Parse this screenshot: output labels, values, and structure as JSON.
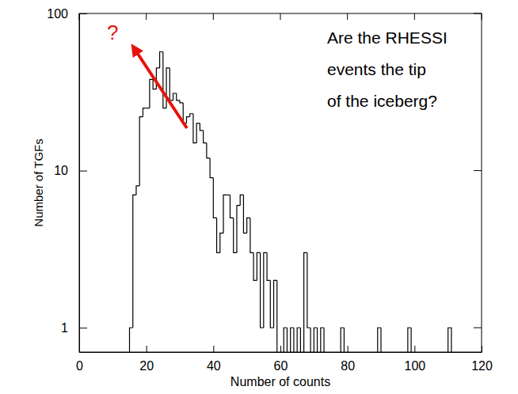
{
  "chart_data": {
    "type": "histogram",
    "x_label": "Number of counts",
    "y_label": "Number of TGFs",
    "annotation": [
      "Are the RHESSI",
      "events the tip",
      "of the iceberg?"
    ],
    "question_mark": "?",
    "color": "#000000",
    "log": "y",
    "grid": false,
    "xlim": [
      0,
      120
    ],
    "xticks": [
      0,
      20,
      40,
      60,
      80,
      100,
      120
    ],
    "ylim": [
      0.7,
      100
    ],
    "yticks": [
      1,
      10,
      100
    ],
    "bins": [
      15,
      16,
      17,
      18,
      19,
      20,
      21,
      22,
      23,
      24,
      25,
      26,
      27,
      28,
      29,
      30,
      31,
      32,
      33,
      34,
      35,
      36,
      37,
      38,
      39,
      40,
      41,
      42,
      43,
      44,
      45,
      46,
      47,
      48,
      49,
      50,
      51,
      52,
      53,
      54,
      55,
      56,
      57,
      58,
      59,
      60,
      61,
      62,
      63,
      64,
      65,
      66,
      67,
      68,
      69,
      70,
      71,
      72,
      73,
      74,
      75,
      76,
      77,
      78,
      79,
      80,
      81,
      82,
      83,
      84,
      85,
      86,
      87,
      88,
      89,
      90,
      91,
      92,
      93,
      94,
      95,
      96,
      97,
      98,
      99,
      100,
      101,
      102,
      103,
      104,
      105,
      106,
      107,
      108,
      109,
      110,
      111
    ],
    "counts": [
      1,
      7,
      8,
      22,
      25,
      25,
      38,
      33,
      45,
      57,
      25,
      45,
      28,
      31,
      28,
      27,
      20,
      22,
      23,
      15,
      20,
      18,
      15,
      12,
      9,
      5,
      3,
      4,
      7,
      7,
      5,
      3,
      6,
      7,
      4,
      5,
      3,
      2,
      3,
      1,
      3,
      2,
      1,
      2,
      0,
      0,
      1,
      0,
      1,
      0,
      1,
      0,
      3,
      1,
      0,
      1,
      0,
      1,
      0,
      0,
      0,
      0,
      0,
      1,
      0,
      0,
      0,
      0,
      0,
      0,
      0,
      0,
      0,
      0,
      1,
      0,
      0,
      0,
      0,
      0,
      0,
      0,
      0,
      1,
      0,
      0,
      0,
      0,
      0,
      0,
      0,
      0,
      0,
      0,
      0,
      1
    ]
  }
}
